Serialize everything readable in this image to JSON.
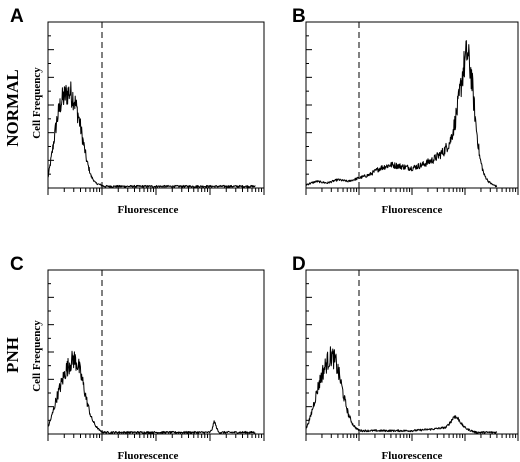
{
  "row_labels": [
    "NORMAL",
    "PNH"
  ],
  "chart_data": [
    {
      "type": "line",
      "panel": "A",
      "row": "NORMAL",
      "xlabel": "Fluorescence",
      "ylabel": "Cell Frequency",
      "xlim": [
        0,
        100
      ],
      "ylim": [
        0,
        100
      ],
      "grid": false,
      "gate_x": 25,
      "x": [
        0,
        2,
        4,
        6,
        8,
        10,
        12,
        14,
        16,
        18,
        20,
        22,
        24,
        26,
        30,
        40,
        50,
        60,
        70,
        80,
        90,
        96
      ],
      "y": [
        6,
        22,
        40,
        52,
        56,
        58,
        54,
        44,
        30,
        16,
        7,
        3,
        2,
        1,
        1,
        1,
        1,
        1,
        1,
        1,
        1,
        1
      ]
    },
    {
      "type": "line",
      "panel": "B",
      "row": "NORMAL",
      "xlabel": "Fluorescence",
      "ylabel": "",
      "xlim": [
        0,
        100
      ],
      "ylim": [
        0,
        100
      ],
      "grid": false,
      "gate_x": 25,
      "x": [
        0,
        5,
        10,
        15,
        20,
        25,
        30,
        35,
        40,
        45,
        50,
        55,
        60,
        65,
        68,
        70,
        72,
        74,
        76,
        78,
        80,
        82,
        84,
        86,
        88,
        90
      ],
      "y": [
        2,
        4,
        3,
        5,
        4,
        6,
        8,
        12,
        14,
        13,
        12,
        14,
        17,
        22,
        28,
        38,
        52,
        70,
        82,
        68,
        40,
        18,
        8,
        4,
        2,
        1
      ]
    },
    {
      "type": "line",
      "panel": "C",
      "row": "PNH",
      "xlabel": "Fluorescence",
      "ylabel": "Cell Frequency",
      "xlim": [
        0,
        100
      ],
      "ylim": [
        0,
        100
      ],
      "grid": false,
      "gate_x": 25,
      "x": [
        0,
        2,
        4,
        6,
        8,
        10,
        12,
        14,
        16,
        18,
        20,
        22,
        24,
        26,
        30,
        40,
        50,
        60,
        70,
        75,
        76,
        77,
        78,
        79,
        80,
        90,
        96
      ],
      "y": [
        4,
        12,
        22,
        30,
        38,
        43,
        46,
        42,
        32,
        20,
        10,
        5,
        2,
        1,
        1,
        1,
        1,
        1,
        1,
        1,
        3,
        8,
        4,
        1,
        1,
        1,
        1
      ]
    },
    {
      "type": "line",
      "panel": "D",
      "row": "PNH",
      "xlabel": "Fluorescence",
      "ylabel": "",
      "xlim": [
        0,
        100
      ],
      "ylim": [
        0,
        100
      ],
      "grid": false,
      "gate_x": 25,
      "x": [
        0,
        2,
        4,
        6,
        8,
        10,
        12,
        14,
        16,
        18,
        20,
        22,
        24,
        26,
        30,
        40,
        50,
        60,
        66,
        68,
        70,
        72,
        74,
        76,
        78,
        80,
        85,
        90
      ],
      "y": [
        3,
        10,
        20,
        30,
        38,
        44,
        48,
        44,
        34,
        22,
        12,
        6,
        3,
        2,
        2,
        2,
        2,
        3,
        4,
        7,
        11,
        9,
        5,
        3,
        2,
        1,
        1,
        1
      ]
    }
  ]
}
